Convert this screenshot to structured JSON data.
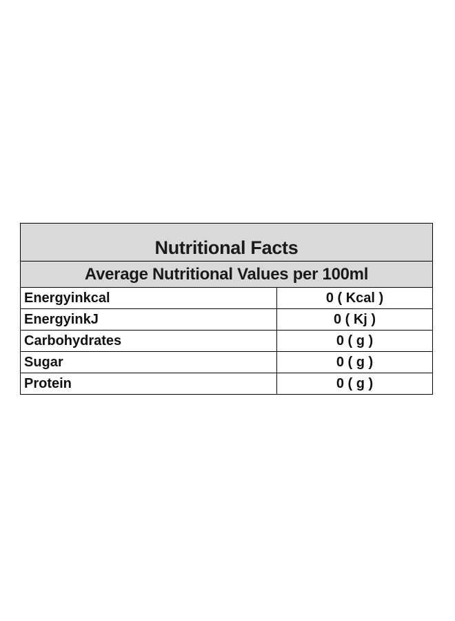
{
  "table": {
    "title": "Nutritional Facts",
    "subtitle": "Average Nutritional Values per 100ml",
    "rows": [
      {
        "label": "Energyinkcal",
        "value": "0 ( Kcal )"
      },
      {
        "label": "EnergyinkJ",
        "value": "0 ( Kj )"
      },
      {
        "label": "Carbohydrates",
        "value": "0 ( g )"
      },
      {
        "label": "Sugar",
        "value": "0 ( g )"
      },
      {
        "label": "Protein",
        "value": "0 ( g )"
      }
    ]
  },
  "colors": {
    "header_background": "#d9d9d9",
    "border": "#000000",
    "text": "#111111"
  }
}
